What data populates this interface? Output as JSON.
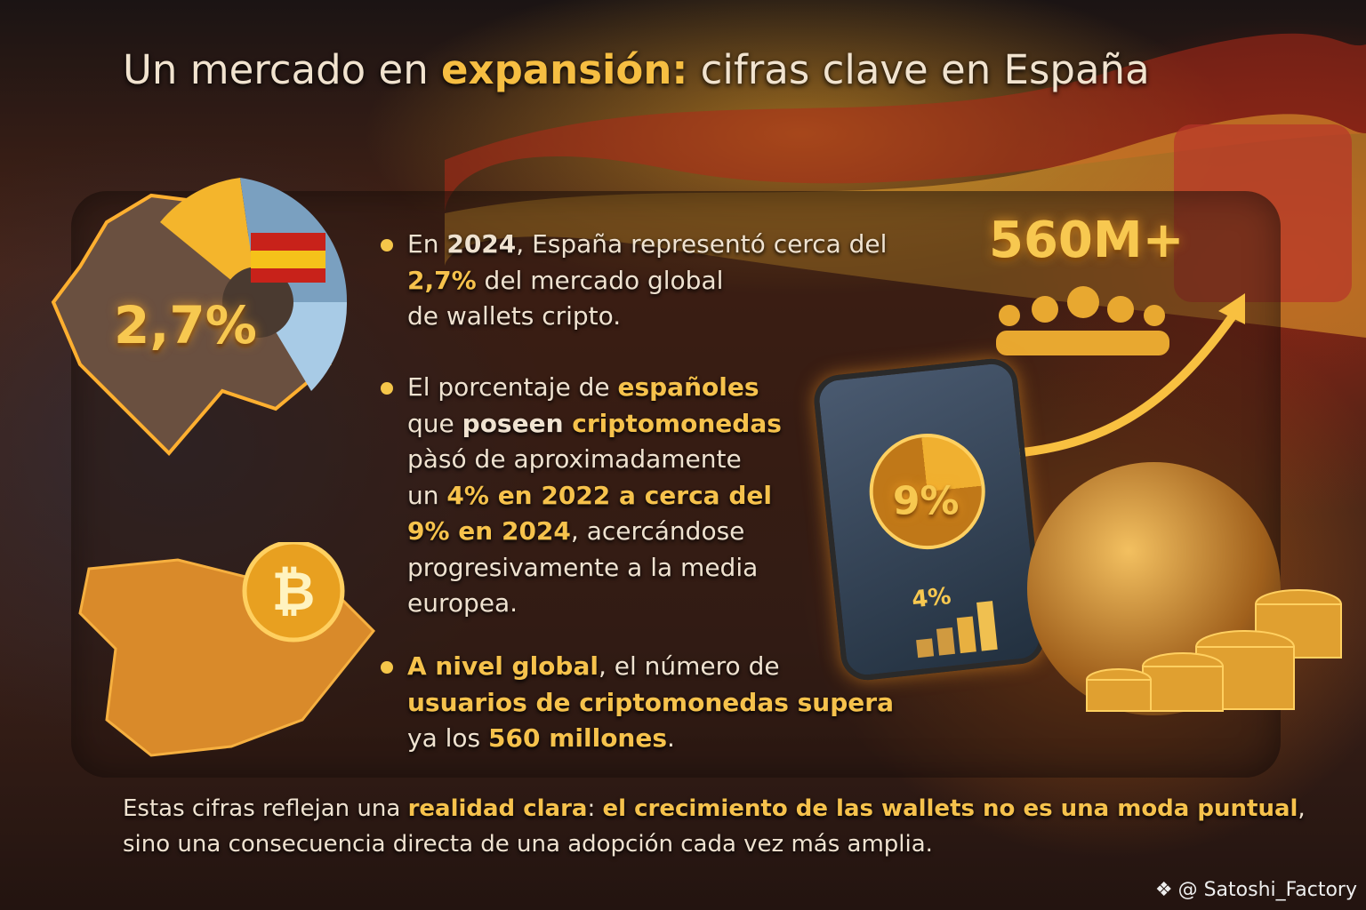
{
  "title": {
    "pre": "Un mercado en ",
    "highlight": "expansión:",
    "post": " cifras clave en España"
  },
  "graphics": {
    "pie_label": "2,7%",
    "users_label": "560M+",
    "phone_pie_label": "9%",
    "phone_bar_label": "4%"
  },
  "bullets": [
    {
      "lines": [
        [
          {
            "t": "En ",
            "s": ""
          },
          {
            "t": "2024",
            "s": "b"
          },
          {
            "t": ", España representó cerca del",
            "s": ""
          }
        ],
        [
          {
            "t": "2,7%",
            "s": "g"
          },
          {
            "t": " del mercado global",
            "s": ""
          }
        ],
        [
          {
            "t": "de wallets cripto.",
            "s": ""
          }
        ]
      ]
    },
    {
      "lines": [
        [
          {
            "t": "El porcentaje de ",
            "s": ""
          },
          {
            "t": "españoles",
            "s": "g"
          }
        ],
        [
          {
            "t": "que ",
            "s": ""
          },
          {
            "t": "poseen ",
            "s": "b"
          },
          {
            "t": "criptomonedas",
            "s": "g"
          }
        ],
        [
          {
            "t": "pàsó de aproximadamente",
            "s": ""
          }
        ],
        [
          {
            "t": "un ",
            "s": ""
          },
          {
            "t": "4% en 2022",
            "s": "g"
          },
          {
            "t": " a cerca del",
            "s": "g"
          }
        ],
        [
          {
            "t": "9% en 2024",
            "s": "g"
          },
          {
            "t": ", acercándose",
            "s": ""
          }
        ],
        [
          {
            "t": "progresivamente a la media",
            "s": ""
          }
        ],
        [
          {
            "t": "europea.",
            "s": ""
          }
        ]
      ]
    },
    {
      "lines": [
        [
          {
            "t": "A nivel global",
            "s": "g"
          },
          {
            "t": ", el número de",
            "s": ""
          }
        ],
        [
          {
            "t": "usuarios de criptomonedas supera",
            "s": "g"
          }
        ],
        [
          {
            "t": "ya los ",
            "s": ""
          },
          {
            "t": "560 millones",
            "s": "g"
          },
          {
            "t": ".",
            "s": ""
          }
        ]
      ]
    }
  ],
  "footer": {
    "lines": [
      [
        {
          "t": "Estas cifras reflejan una ",
          "s": ""
        },
        {
          "t": "realidad clara",
          "s": "g"
        },
        {
          "t": ": ",
          "s": ""
        },
        {
          "t": "el crecimiento de las wallets no es una moda puntual",
          "s": "g"
        },
        {
          "t": ",",
          "s": ""
        }
      ],
      [
        {
          "t": "sino una consecuencia directa de una adopción cada vez más amplia.",
          "s": ""
        }
      ]
    ]
  },
  "watermark": "@ Satoshi_Factory",
  "colors": {
    "accent": "#f6c24c",
    "text": "#efe2d0"
  }
}
